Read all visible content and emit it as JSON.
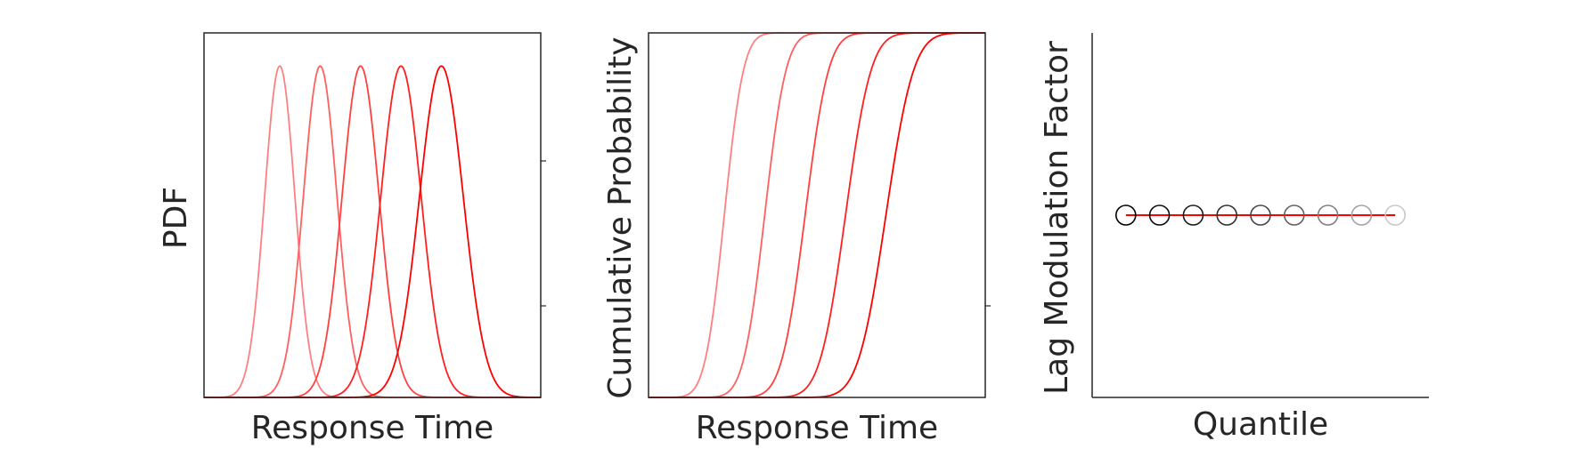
{
  "chart_data": [
    {
      "type": "line",
      "xlabel": "Response Time",
      "ylabel": "PDF",
      "xlim": [
        0,
        10
      ],
      "ylim": [
        0,
        1.1
      ],
      "grid": false,
      "x_ticks": [],
      "y_ticks": [],
      "series": [
        {
          "color": "#ff8080",
          "mu": 2.25,
          "sigma": 0.45,
          "peak": 1.0
        },
        {
          "color": "#ff6060",
          "mu": 3.45,
          "sigma": 0.5,
          "peak": 1.0
        },
        {
          "color": "#ff4040",
          "mu": 4.65,
          "sigma": 0.55,
          "peak": 1.0
        },
        {
          "color": "#ff2020",
          "mu": 5.85,
          "sigma": 0.6,
          "peak": 1.0
        },
        {
          "color": "#ff0000",
          "mu": 7.05,
          "sigma": 0.65,
          "peak": 1.0
        }
      ]
    },
    {
      "type": "line",
      "xlabel": "Response Time",
      "ylabel": "Cumulative Probability",
      "xlim": [
        0,
        10
      ],
      "ylim": [
        0,
        1
      ],
      "grid": false,
      "x_ticks": [],
      "y_ticks": [],
      "series": [
        {
          "color": "#ff8080",
          "mu": 2.25,
          "sigma": 0.45
        },
        {
          "color": "#ff6060",
          "mu": 3.45,
          "sigma": 0.5
        },
        {
          "color": "#ff4040",
          "mu": 4.65,
          "sigma": 0.55
        },
        {
          "color": "#ff2020",
          "mu": 5.85,
          "sigma": 0.6
        },
        {
          "color": "#ff0000",
          "mu": 7.05,
          "sigma": 0.65
        }
      ]
    },
    {
      "type": "scatter",
      "xlabel": "Quantile",
      "ylabel": "Lag Modulation Factor",
      "xlim": [
        0,
        1
      ],
      "ylim": [
        0,
        2
      ],
      "grid": false,
      "x_ticks": [],
      "y_ticks": [],
      "line": {
        "color": "#ff0000",
        "x": [
          0.1,
          0.9
        ],
        "y": [
          1,
          1
        ]
      },
      "points": [
        {
          "x": 0.1,
          "y": 1,
          "color": "#000000"
        },
        {
          "x": 0.2,
          "y": 1,
          "color": "#0a0a0a"
        },
        {
          "x": 0.3,
          "y": 1,
          "color": "#1a1a1a"
        },
        {
          "x": 0.4,
          "y": 1,
          "color": "#2e2e2e"
        },
        {
          "x": 0.5,
          "y": 1,
          "color": "#454545"
        },
        {
          "x": 0.6,
          "y": 1,
          "color": "#606060"
        },
        {
          "x": 0.7,
          "y": 1,
          "color": "#7e7e7e"
        },
        {
          "x": 0.8,
          "y": 1,
          "color": "#a3a3a3"
        },
        {
          "x": 0.9,
          "y": 1,
          "color": "#c8c8c8"
        }
      ]
    }
  ]
}
